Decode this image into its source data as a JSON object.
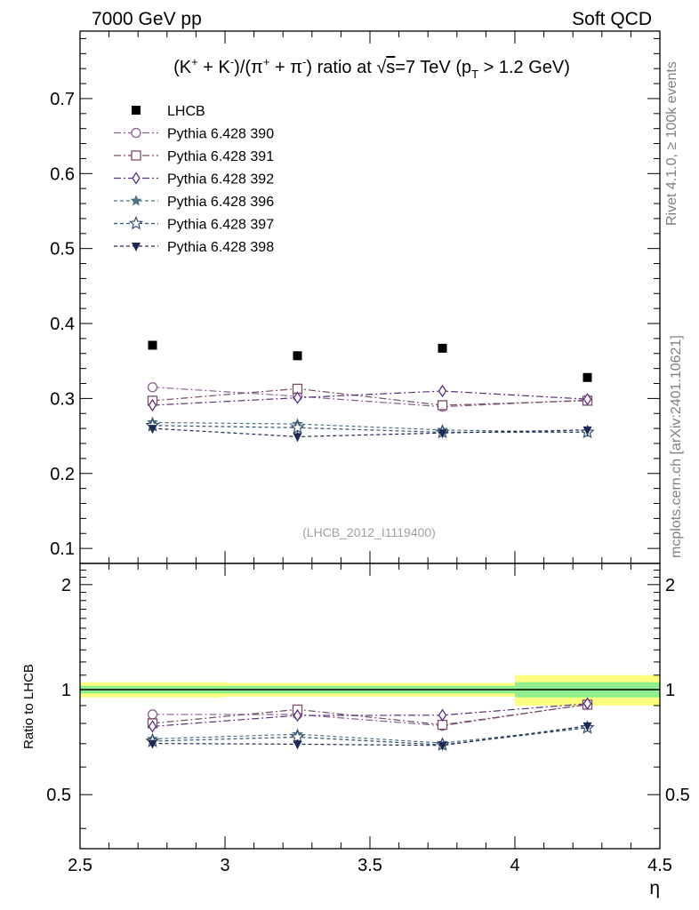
{
  "header": {
    "left": "7000 GeV pp",
    "right": "Soft QCD"
  },
  "side_text": {
    "rivet": "Rivet 4.1.0, ≥ 100k events",
    "mcplots": "mcplots.cern.ch [arXiv:2401.10621]"
  },
  "colors": {
    "lhcb": "#000000",
    "band_inner": "#90f090",
    "band_outer": "#ffff80"
  },
  "chart_data": {
    "type": "scatter",
    "title_parts": {
      "p1": "(K",
      "sup1": "+",
      "p2": " + K",
      "sup2": "-",
      "p3": ")/(π",
      "sup3": "+",
      "p4": " + π",
      "sup4": "-",
      "p5": ") ratio at ",
      "sqrt": "√",
      "s": "s",
      "p6": "=7 TeV (p",
      "sub": "T",
      "p7": " > 1.2 GeV)"
    },
    "analysis_id": "(LHCB_2012_I1119400)",
    "xlabel": "η",
    "ratio_ylabel": "Ratio to LHCB",
    "xlim": [
      2.5,
      4.5
    ],
    "ylim": [
      0.08,
      0.79
    ],
    "ratio_ylim": [
      0.35,
      2.3
    ],
    "x_ticks": [
      "2.5",
      "3",
      "3.5",
      "4",
      "4.5"
    ],
    "y_ticks": [
      "0.1",
      "0.2",
      "0.3",
      "0.4",
      "0.5",
      "0.6",
      "0.7"
    ],
    "ratio_ticks": [
      "0.5",
      "1",
      "2"
    ],
    "x": [
      2.75,
      3.25,
      3.75,
      4.25
    ],
    "bins": [
      [
        2.5,
        3.0
      ],
      [
        3.0,
        3.5
      ],
      [
        3.5,
        4.0
      ],
      [
        4.0,
        4.5
      ]
    ],
    "reference": {
      "name": "LHCB",
      "values": [
        0.371,
        0.357,
        0.367,
        0.328
      ],
      "stat_rel": [
        0.025,
        0.025,
        0.025,
        0.05
      ],
      "tot_rel": [
        0.05,
        0.045,
        0.045,
        0.1
      ]
    },
    "series": [
      {
        "name": "Pythia 6.428 390",
        "color": "#8a5e8f",
        "marker": "circle",
        "dash": "8,3,2,3",
        "values": [
          0.315,
          0.303,
          0.289,
          0.298
        ],
        "err": [
          0.004,
          0.004,
          0.004,
          0.004
        ]
      },
      {
        "name": "Pythia 6.428 391",
        "color": "#7a4a66",
        "marker": "square",
        "dash": "8,3,2,3",
        "values": [
          0.297,
          0.313,
          0.291,
          0.297
        ],
        "err": [
          0.005,
          0.005,
          0.005,
          0.005
        ]
      },
      {
        "name": "Pythia 6.428 392",
        "color": "#5a3080",
        "marker": "diamond",
        "dash": "8,3,2,3",
        "values": [
          0.291,
          0.301,
          0.31,
          0.299
        ],
        "err": [
          0.005,
          0.005,
          0.006,
          0.006
        ]
      },
      {
        "name": "Pythia 6.428 396",
        "color": "#4f7385",
        "marker": "star",
        "dash": "4,3",
        "values": [
          0.268,
          0.266,
          0.258,
          0.255
        ],
        "err": [
          0.006,
          0.006,
          0.006,
          0.006
        ]
      },
      {
        "name": "Pythia 6.428 397",
        "color": "#34506e",
        "marker": "star-open",
        "dash": "4,3",
        "values": [
          0.264,
          0.261,
          0.255,
          0.255
        ],
        "err": [
          0.006,
          0.006,
          0.006,
          0.006
        ]
      },
      {
        "name": "Pythia 6.428 398",
        "color": "#1e2a55",
        "marker": "triangle-down",
        "dash": "4,3",
        "values": [
          0.26,
          0.249,
          0.254,
          0.258
        ],
        "err": [
          0.006,
          0.006,
          0.006,
          0.006
        ]
      }
    ]
  }
}
